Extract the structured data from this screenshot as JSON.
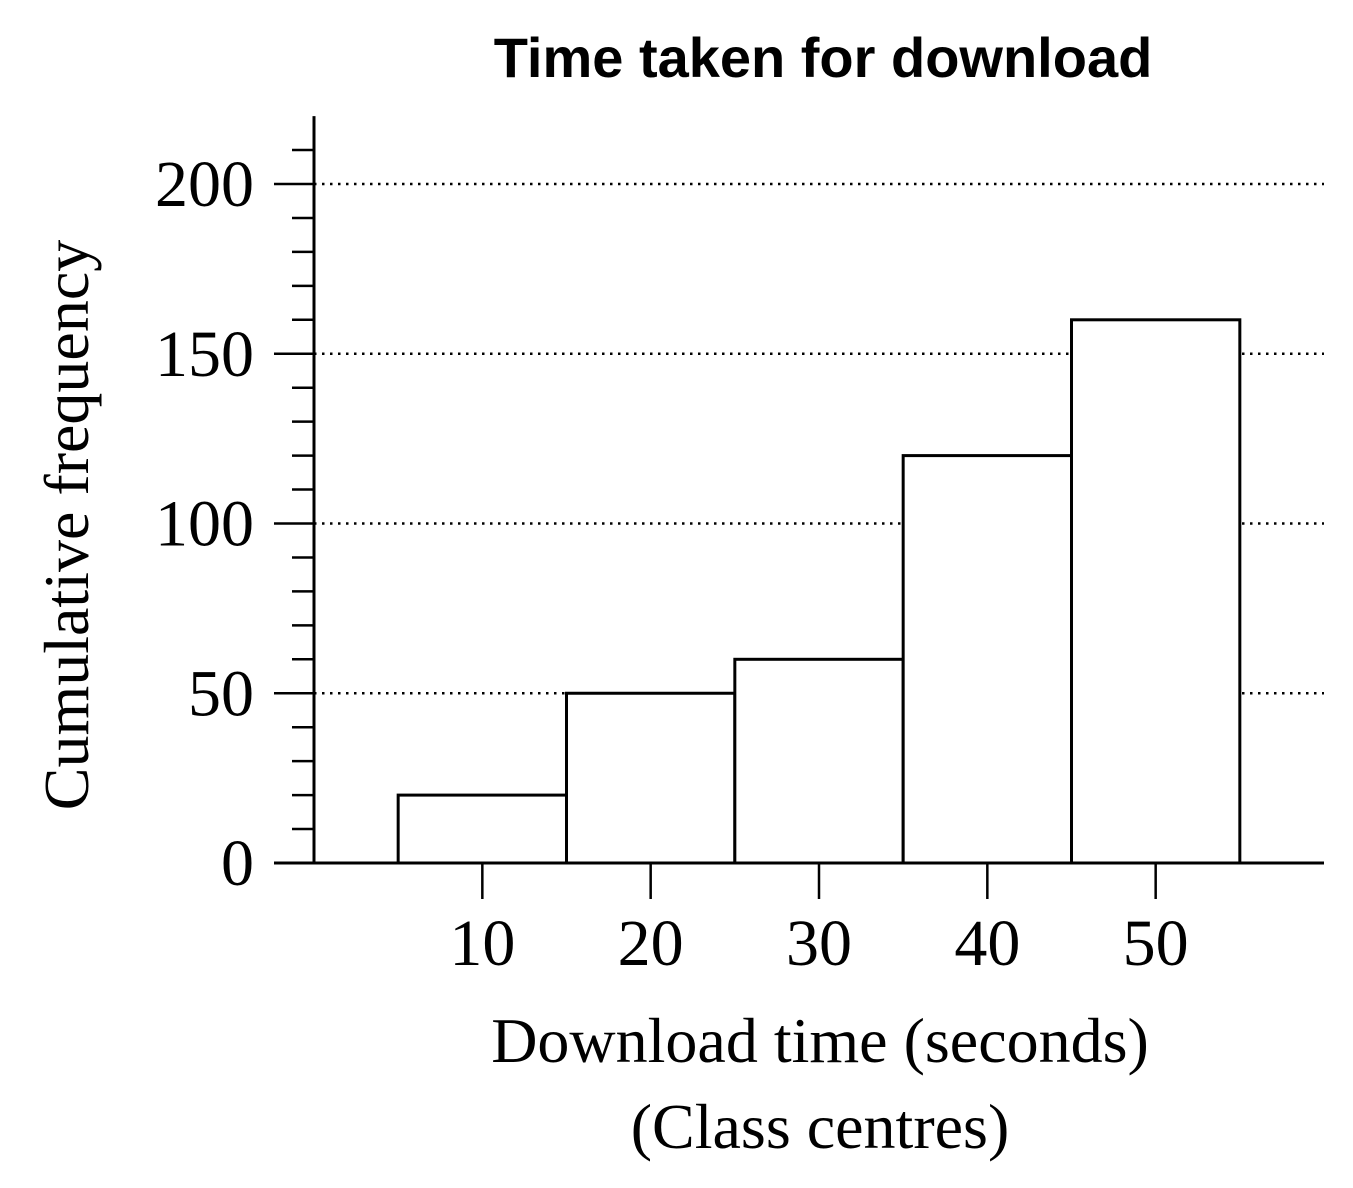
{
  "chart_data": {
    "type": "bar",
    "title": "Time taken for download",
    "xlabel": "Download time (seconds)",
    "xlabel_sub": "(Class centres)",
    "ylabel": "Cumulative frequency",
    "categories": [
      "10",
      "20",
      "30",
      "40",
      "50"
    ],
    "x": [
      10,
      20,
      30,
      40,
      50
    ],
    "values": [
      20,
      50,
      60,
      120,
      160
    ],
    "bar_width": 10,
    "xlim": [
      0,
      60
    ],
    "ylim": [
      0,
      220
    ],
    "yticks": [
      0,
      50,
      100,
      150,
      200
    ],
    "y_minor_step": 10,
    "grid": "dotted horizontal at major y ticks",
    "bar_fill": "#ffffff",
    "bar_stroke": "#000000"
  }
}
